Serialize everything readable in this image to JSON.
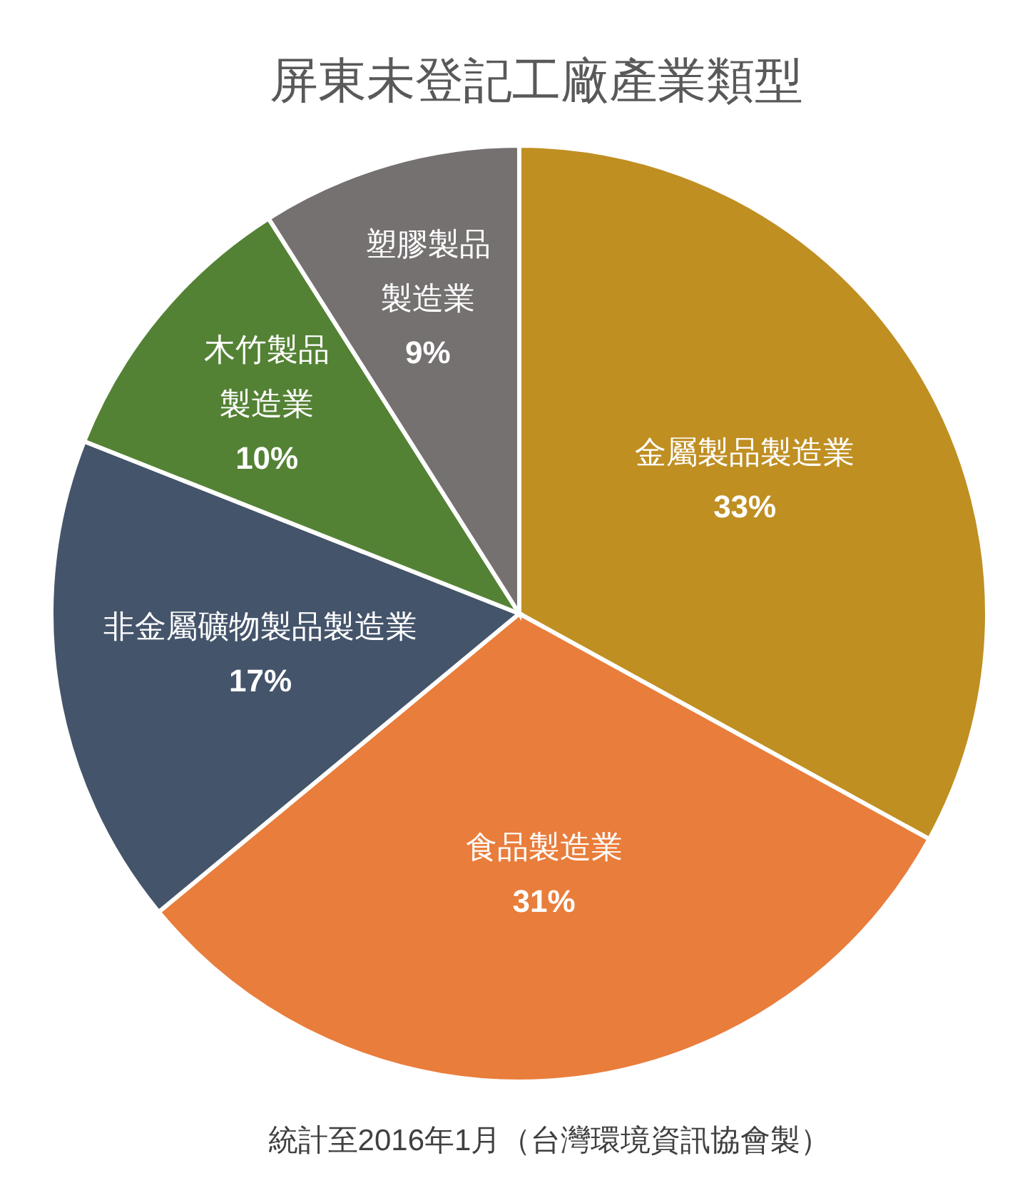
{
  "chart_data": {
    "type": "pie",
    "title": "屏東未登記工廠產業類型",
    "categories": [
      "金屬製品製造業",
      "食品製造業",
      "非金屬礦物製品製造業",
      "木竹製品製造業",
      "塑膠製品製造業"
    ],
    "values": [
      33,
      31,
      17,
      10,
      9
    ],
    "colors": [
      "#bf8f22",
      "#e97d3b",
      "#44546a",
      "#548235",
      "#767171"
    ],
    "value_labels": [
      "33%",
      "31%",
      "17%",
      "10%",
      "9%"
    ],
    "annotations": [
      "統計至2016年1月（台灣環境資訊協會製）"
    ]
  }
}
